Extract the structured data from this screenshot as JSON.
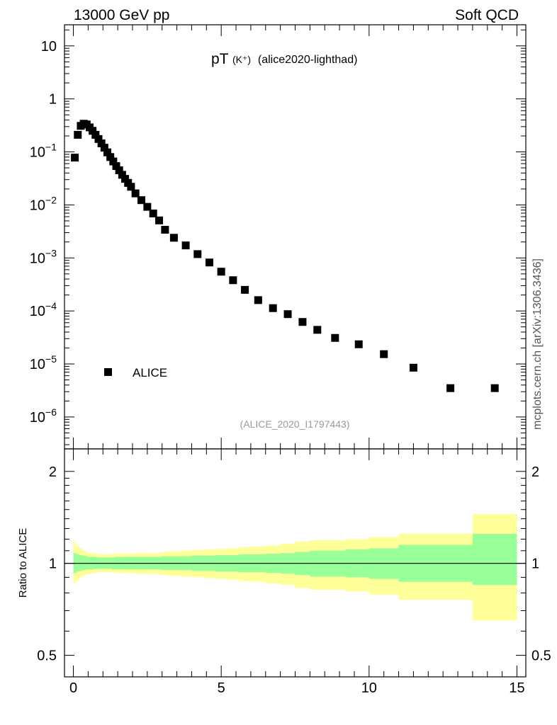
{
  "header": {
    "left": "13000 GeV pp",
    "right": "Soft QCD"
  },
  "side_label": "mcplots.cern.ch [arXiv:1306.3436]",
  "chart_data": {
    "type": "scatter",
    "title": "pT",
    "title_sub": "(K⁺)",
    "title_suffix": "(alice2020-lighthad)",
    "watermark": "(ALICE_2020_I1797443)",
    "legend": {
      "label": "ALICE",
      "placement": "bottom-left"
    },
    "xlim": [
      -0.3,
      15.3
    ],
    "x_ticks": [
      0,
      5,
      10,
      15
    ],
    "main": {
      "yscale": "log",
      "ylim": [
        2.5e-07,
        25
      ],
      "y_ticks": [
        {
          "value": 10,
          "label": "10"
        },
        {
          "value": 1,
          "label": "1"
        },
        {
          "value": 0.1,
          "base": "10",
          "exp": "−1"
        },
        {
          "value": 0.01,
          "base": "10",
          "exp": "−2"
        },
        {
          "value": 0.001,
          "base": "10",
          "exp": "−3"
        },
        {
          "value": 0.0001,
          "base": "10",
          "exp": "−4"
        },
        {
          "value": 1e-05,
          "base": "10",
          "exp": "−5"
        },
        {
          "value": 1e-06,
          "base": "10",
          "exp": "−6"
        }
      ]
    },
    "series": [
      {
        "name": "ALICE",
        "color": "#000000",
        "x": [
          0.05,
          0.15,
          0.25,
          0.35,
          0.45,
          0.55,
          0.65,
          0.75,
          0.85,
          0.95,
          1.05,
          1.15,
          1.25,
          1.35,
          1.45,
          1.55,
          1.65,
          1.75,
          1.85,
          1.95,
          2.1,
          2.3,
          2.5,
          2.7,
          2.9,
          3.1,
          3.4,
          3.8,
          4.2,
          4.6,
          5.0,
          5.4,
          5.8,
          6.25,
          6.75,
          7.25,
          7.75,
          8.25,
          8.85,
          9.65,
          10.5,
          11.5,
          12.75,
          14.25
        ],
        "y": [
          0.078,
          0.21,
          0.31,
          0.34,
          0.33,
          0.29,
          0.25,
          0.21,
          0.175,
          0.145,
          0.12,
          0.098,
          0.08,
          0.066,
          0.054,
          0.045,
          0.037,
          0.031,
          0.026,
          0.022,
          0.0165,
          0.0123,
          0.0092,
          0.0069,
          0.0051,
          0.0034,
          0.0024,
          0.00172,
          0.00118,
          0.00082,
          0.00055,
          0.00038,
          0.00025,
          0.00016,
          0.000113,
          8.7e-05,
          6.2e-05,
          4.4e-05,
          3.1e-05,
          2.35e-05,
          1.53e-05,
          8.5e-06,
          3.5e-06,
          3.5e-06
        ]
      }
    ],
    "ratio": {
      "ylabel": "Ratio to ALICE",
      "yscale": "log",
      "ylim": [
        0.425,
        2.37
      ],
      "y_ticks": [
        {
          "value": 2,
          "label": "2"
        },
        {
          "value": 1,
          "label": "1"
        },
        {
          "value": 0.5,
          "label": "0.5"
        }
      ],
      "bands": {
        "x_edges": [
          0,
          0.1,
          0.2,
          0.3,
          0.4,
          0.5,
          0.6,
          0.7,
          0.8,
          0.9,
          1.0,
          1.1,
          1.2,
          1.3,
          1.4,
          1.5,
          1.6,
          1.7,
          1.8,
          1.9,
          2.0,
          2.2,
          2.4,
          2.6,
          2.8,
          3.0,
          3.2,
          3.6,
          4.0,
          4.4,
          4.8,
          5.2,
          5.6,
          6.0,
          6.5,
          7.0,
          7.5,
          8.0,
          8.5,
          9.2,
          10.0,
          11.0,
          12.0,
          13.5,
          15.0
        ],
        "stat_up": [
          1.08,
          1.07,
          1.065,
          1.06,
          1.055,
          1.05,
          1.05,
          1.05,
          1.045,
          1.045,
          1.045,
          1.045,
          1.045,
          1.045,
          1.05,
          1.05,
          1.05,
          1.05,
          1.05,
          1.05,
          1.05,
          1.05,
          1.05,
          1.05,
          1.05,
          1.055,
          1.055,
          1.055,
          1.06,
          1.06,
          1.065,
          1.065,
          1.07,
          1.07,
          1.075,
          1.08,
          1.09,
          1.1,
          1.1,
          1.11,
          1.12,
          1.15,
          1.15,
          1.25
        ],
        "stat_down": [
          0.93,
          0.94,
          0.945,
          0.95,
          0.955,
          0.955,
          0.955,
          0.96,
          0.96,
          0.96,
          0.96,
          0.96,
          0.96,
          0.955,
          0.955,
          0.955,
          0.955,
          0.955,
          0.955,
          0.955,
          0.955,
          0.955,
          0.955,
          0.955,
          0.955,
          0.95,
          0.95,
          0.95,
          0.945,
          0.945,
          0.94,
          0.94,
          0.935,
          0.935,
          0.93,
          0.925,
          0.915,
          0.905,
          0.905,
          0.9,
          0.89,
          0.87,
          0.87,
          0.85
        ],
        "total_up": [
          1.18,
          1.14,
          1.12,
          1.1,
          1.09,
          1.08,
          1.08,
          1.075,
          1.075,
          1.07,
          1.07,
          1.07,
          1.07,
          1.075,
          1.075,
          1.075,
          1.075,
          1.075,
          1.075,
          1.075,
          1.08,
          1.08,
          1.08,
          1.08,
          1.085,
          1.09,
          1.095,
          1.1,
          1.105,
          1.11,
          1.115,
          1.12,
          1.13,
          1.135,
          1.145,
          1.16,
          1.18,
          1.19,
          1.19,
          1.2,
          1.22,
          1.25,
          1.25,
          1.45
        ],
        "total_down": [
          0.86,
          0.88,
          0.9,
          0.91,
          0.92,
          0.925,
          0.93,
          0.93,
          0.935,
          0.935,
          0.935,
          0.935,
          0.935,
          0.935,
          0.93,
          0.93,
          0.93,
          0.93,
          0.93,
          0.93,
          0.925,
          0.925,
          0.925,
          0.925,
          0.92,
          0.915,
          0.91,
          0.905,
          0.9,
          0.895,
          0.89,
          0.885,
          0.875,
          0.87,
          0.86,
          0.85,
          0.83,
          0.82,
          0.82,
          0.81,
          0.79,
          0.76,
          0.76,
          0.65
        ],
        "stat_color": "#99ff99",
        "total_color": "#ffff99"
      }
    }
  }
}
